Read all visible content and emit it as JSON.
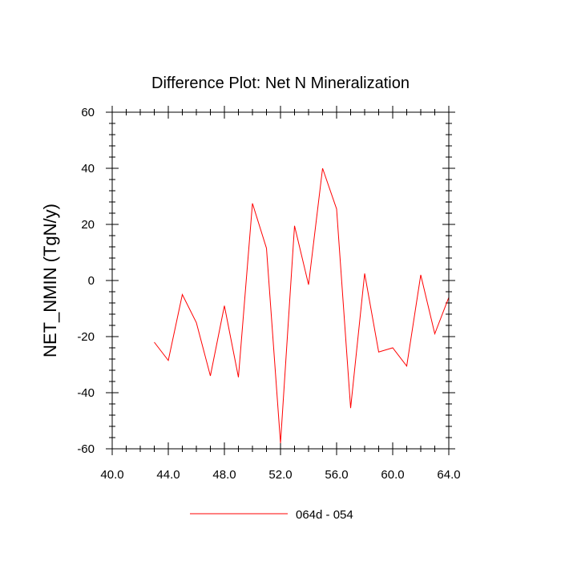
{
  "chart_data": {
    "type": "line",
    "title": "Difference Plot: Net N Mineralization",
    "xlabel": "",
    "ylabel": "NET_NMIN  (TgN/y)",
    "xlim": [
      40,
      64
    ],
    "ylim": [
      -60,
      60
    ],
    "x_ticks": [
      40,
      44,
      48,
      52,
      56,
      60,
      64
    ],
    "x_tick_labels": [
      "40.0",
      "44.0",
      "48.0",
      "52.0",
      "56.0",
      "60.0",
      "64.0"
    ],
    "x_minor_step": 1,
    "y_ticks": [
      -60,
      -40,
      -20,
      0,
      20,
      40,
      60
    ],
    "y_tick_labels": [
      "-60",
      "-40",
      "-20",
      "0",
      "20",
      "40",
      "60"
    ],
    "y_minor_step": 4,
    "legend_position": "bottom-center",
    "series": [
      {
        "name": "064d - 054",
        "color": "#ff0000",
        "x": [
          43,
          44,
          45,
          46,
          47,
          48,
          49,
          50,
          51,
          52,
          53,
          54,
          55,
          56,
          57,
          58,
          59,
          60,
          61,
          62,
          63,
          64
        ],
        "y": [
          -22,
          -28.5,
          -5,
          -15,
          -34,
          -9,
          -34.5,
          27.5,
          11.5,
          -58,
          19.5,
          -1.5,
          40,
          25.5,
          -45.5,
          2.5,
          -25.5,
          -24,
          -30.5,
          2,
          -19,
          -6
        ]
      }
    ]
  }
}
